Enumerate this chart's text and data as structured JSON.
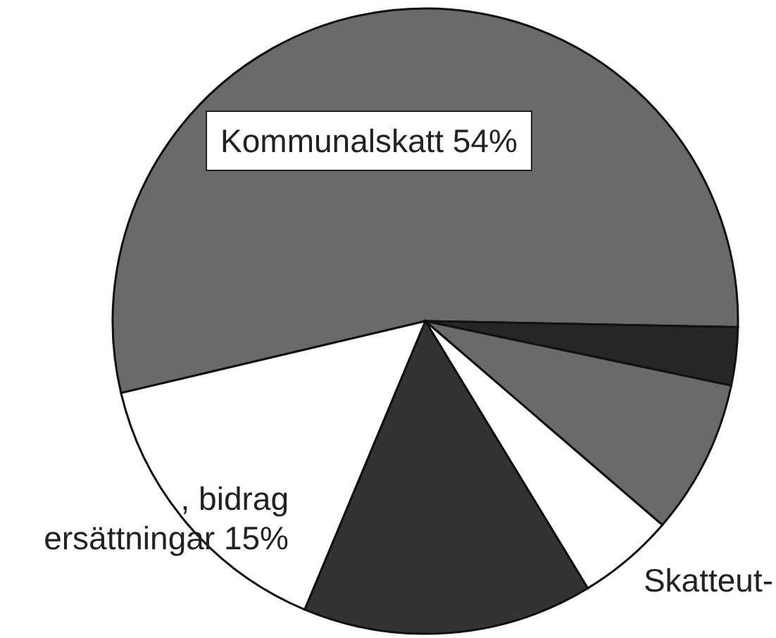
{
  "chart_data": {
    "type": "pie",
    "categories": [
      "Kommunalskatt",
      null,
      null,
      "Skatteut-",
      null,
      ", bidrag ersättningar"
    ],
    "values": [
      54,
      3,
      8,
      5,
      15,
      15
    ],
    "value_labels": [
      "54%",
      null,
      null,
      null,
      null,
      "15%"
    ],
    "colors": [
      "#6a6a6a",
      "#262626",
      "#6a6a6a",
      "#ffffff",
      "#333333",
      "#ffffff"
    ]
  }
}
